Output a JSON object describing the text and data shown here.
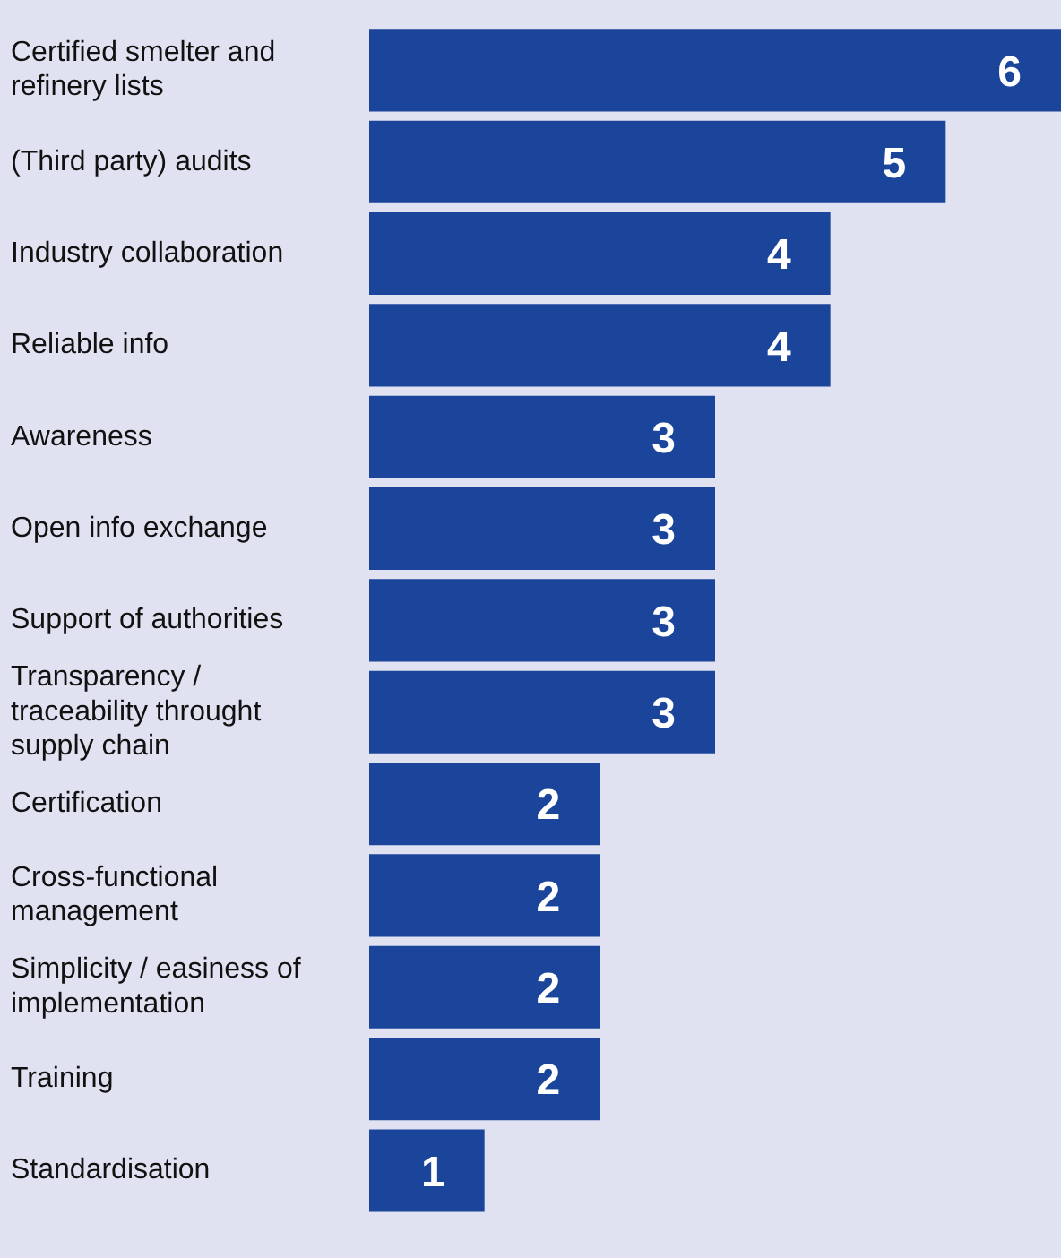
{
  "chart_data": {
    "type": "bar",
    "orientation": "horizontal",
    "categories": [
      "Certified smelter and refinery lists",
      "(Third party) audits",
      "Industry collaboration",
      "Reliable info",
      "Awareness",
      "Open info exchange",
      "Support of authorities",
      "Transparency / traceability throught supply chain",
      "Certification",
      "Cross-functional management",
      "Simplicity / easiness of implementation",
      "Training",
      "Standardisation"
    ],
    "values": [
      6,
      5,
      4,
      4,
      3,
      3,
      3,
      3,
      2,
      2,
      2,
      2,
      1
    ],
    "color": "#1b449b",
    "data_labels": true
  }
}
